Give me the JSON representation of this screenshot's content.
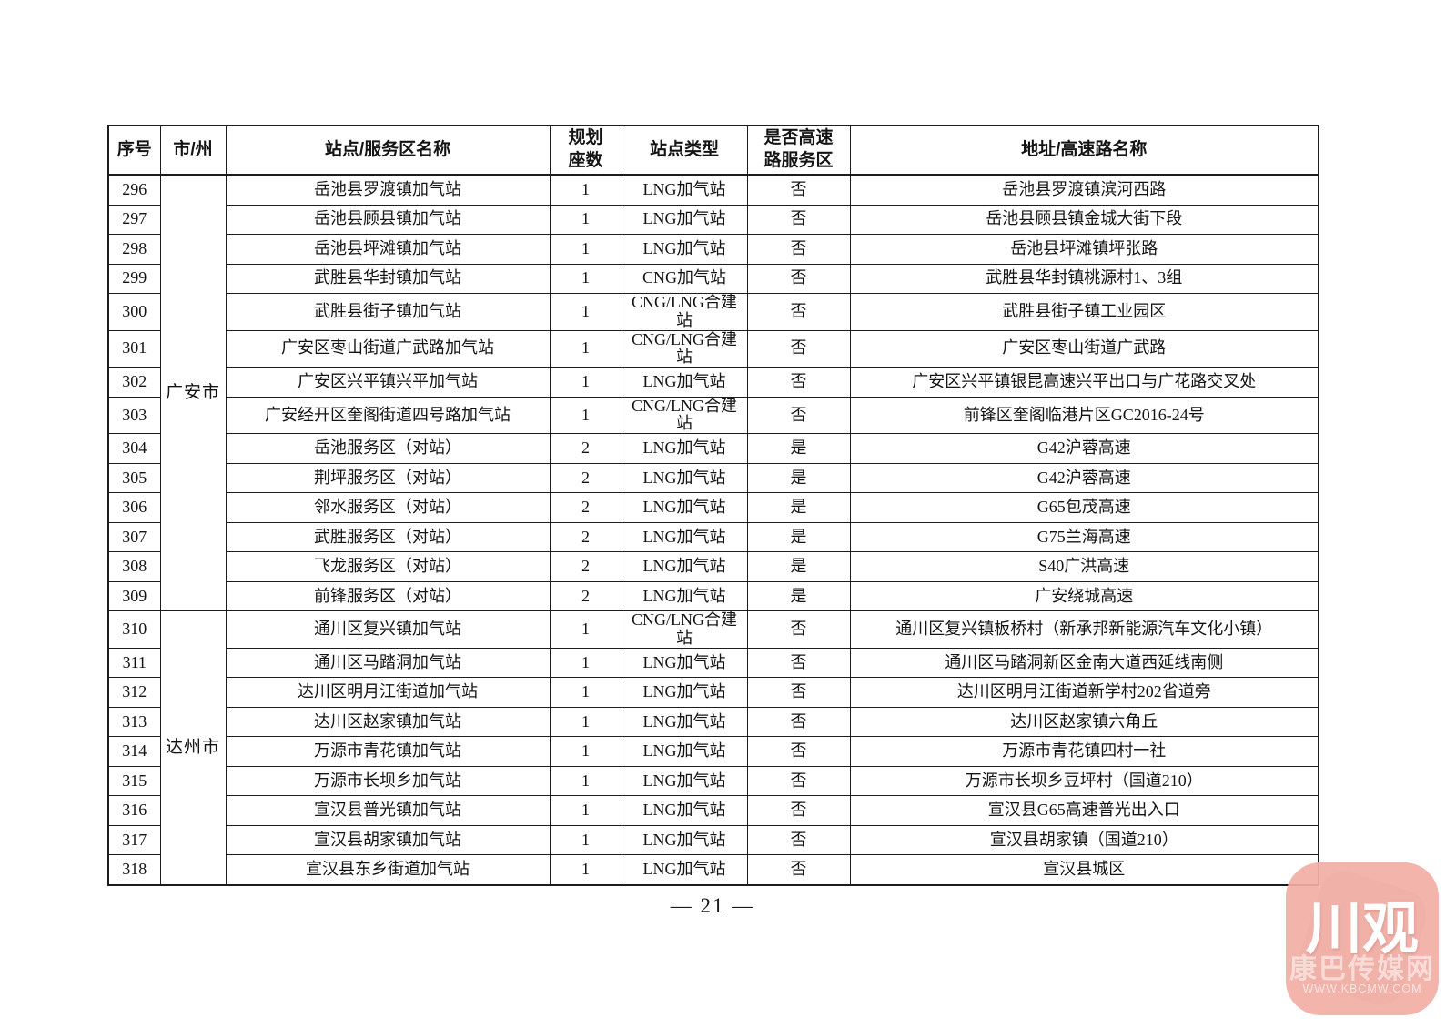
{
  "table": {
    "headers": [
      "序号",
      "市/州",
      "站点/服务区名称",
      "规划\n座数",
      "站点类型",
      "是否高速\n路服务区",
      "地址/高速路名称"
    ],
    "city_groups": [
      {
        "city": "广安市",
        "row_count": 14
      },
      {
        "city": "达州市",
        "row_count": 9
      }
    ],
    "rows": [
      {
        "no": "296",
        "name": "岳池县罗渡镇加气站",
        "seats": "1",
        "type": "LNG加气站",
        "hw": "否",
        "addr": "岳池县罗渡镇滨河西路"
      },
      {
        "no": "297",
        "name": "岳池县顾县镇加气站",
        "seats": "1",
        "type": "LNG加气站",
        "hw": "否",
        "addr": "岳池县顾县镇金城大街下段"
      },
      {
        "no": "298",
        "name": "岳池县坪滩镇加气站",
        "seats": "1",
        "type": "LNG加气站",
        "hw": "否",
        "addr": "岳池县坪滩镇坪张路"
      },
      {
        "no": "299",
        "name": "武胜县华封镇加气站",
        "seats": "1",
        "type": "CNG加气站",
        "hw": "否",
        "addr": "武胜县华封镇桃源村1、3组"
      },
      {
        "no": "300",
        "name": "武胜县街子镇加气站",
        "seats": "1",
        "type": "CNG/LNG合建站",
        "hw": "否",
        "addr": "武胜县街子镇工业园区"
      },
      {
        "no": "301",
        "name": "广安区枣山街道广武路加气站",
        "seats": "1",
        "type": "CNG/LNG合建站",
        "hw": "否",
        "addr": "广安区枣山街道广武路"
      },
      {
        "no": "302",
        "name": "广安区兴平镇兴平加气站",
        "seats": "1",
        "type": "LNG加气站",
        "hw": "否",
        "addr": "广安区兴平镇银昆高速兴平出口与广花路交叉处"
      },
      {
        "no": "303",
        "name": "广安经开区奎阁街道四号路加气站",
        "seats": "1",
        "type": "CNG/LNG合建站",
        "hw": "否",
        "addr": "前锋区奎阁临港片区GC2016-24号"
      },
      {
        "no": "304",
        "name": "岳池服务区（对站）",
        "seats": "2",
        "type": "LNG加气站",
        "hw": "是",
        "addr": "G42沪蓉高速"
      },
      {
        "no": "305",
        "name": "荆坪服务区（对站）",
        "seats": "2",
        "type": "LNG加气站",
        "hw": "是",
        "addr": "G42沪蓉高速"
      },
      {
        "no": "306",
        "name": "邻水服务区（对站）",
        "seats": "2",
        "type": "LNG加气站",
        "hw": "是",
        "addr": "G65包茂高速"
      },
      {
        "no": "307",
        "name": "武胜服务区（对站）",
        "seats": "2",
        "type": "LNG加气站",
        "hw": "是",
        "addr": "G75兰海高速"
      },
      {
        "no": "308",
        "name": "飞龙服务区（对站）",
        "seats": "2",
        "type": "LNG加气站",
        "hw": "是",
        "addr": "S40广洪高速"
      },
      {
        "no": "309",
        "name": "前锋服务区（对站）",
        "seats": "2",
        "type": "LNG加气站",
        "hw": "是",
        "addr": "广安绕城高速"
      },
      {
        "no": "310",
        "name": "通川区复兴镇加气站",
        "seats": "1",
        "type": "CNG/LNG合建站",
        "hw": "否",
        "addr": "通川区复兴镇板桥村（新承邦新能源汽车文化小镇）"
      },
      {
        "no": "311",
        "name": "通川区马踏洞加气站",
        "seats": "1",
        "type": "LNG加气站",
        "hw": "否",
        "addr": "通川区马踏洞新区金南大道西延线南侧"
      },
      {
        "no": "312",
        "name": "达川区明月江街道加气站",
        "seats": "1",
        "type": "LNG加气站",
        "hw": "否",
        "addr": "达川区明月江街道新学村202省道旁"
      },
      {
        "no": "313",
        "name": "达川区赵家镇加气站",
        "seats": "1",
        "type": "LNG加气站",
        "hw": "否",
        "addr": "达川区赵家镇六角丘"
      },
      {
        "no": "314",
        "name": "万源市青花镇加气站",
        "seats": "1",
        "type": "LNG加气站",
        "hw": "否",
        "addr": "万源市青花镇四村一社"
      },
      {
        "no": "315",
        "name": "万源市长坝乡加气站",
        "seats": "1",
        "type": "LNG加气站",
        "hw": "否",
        "addr": "万源市长坝乡豆坪村（国道210）"
      },
      {
        "no": "316",
        "name": "宣汉县普光镇加气站",
        "seats": "1",
        "type": "LNG加气站",
        "hw": "否",
        "addr": "宣汉县G65高速普光出入口"
      },
      {
        "no": "317",
        "name": "宣汉县胡家镇加气站",
        "seats": "1",
        "type": "LNG加气站",
        "hw": "否",
        "addr": "宣汉县胡家镇（国道210）"
      },
      {
        "no": "318",
        "name": "宣汉县东乡街道加气站",
        "seats": "1",
        "type": "LNG加气站",
        "hw": "否",
        "addr": "宣汉县城区"
      }
    ]
  },
  "footer": {
    "page_number": "— 21 —"
  },
  "watermark": {
    "title": "川观",
    "subtitle": "康巴传媒网",
    "url": "WWW.KBCMW.COM",
    "accent_color": "#f3aea6"
  }
}
